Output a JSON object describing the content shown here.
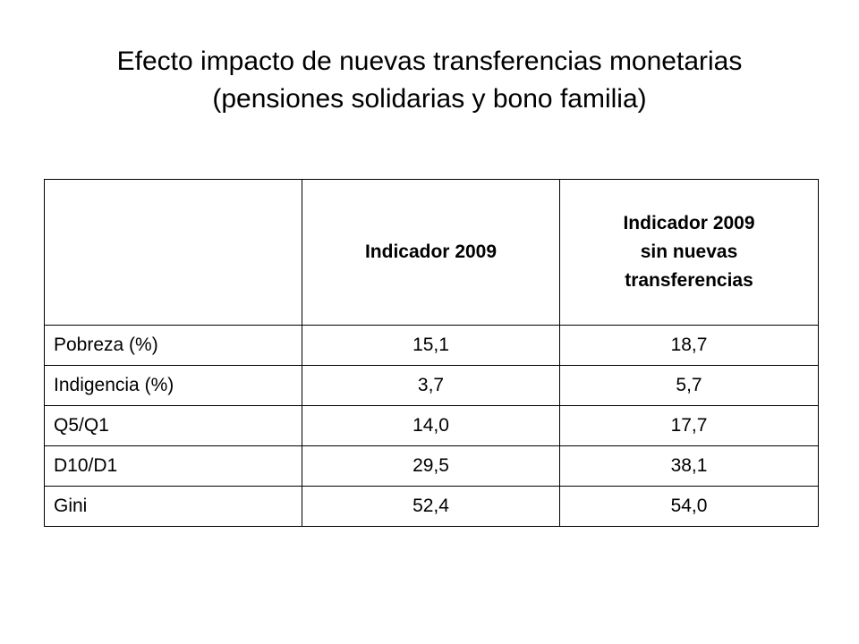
{
  "title": {
    "line1": "Efecto impacto de nuevas transferencias monetarias",
    "line2": "(pensiones solidarias y bono familia)"
  },
  "table": {
    "headers": {
      "col0": "",
      "col1": "Indicador 2009",
      "col2": [
        "Indicador 2009",
        "sin nuevas",
        "transferencias"
      ]
    },
    "rows": [
      {
        "label": "Pobreza (%)",
        "v2009": "15,1",
        "v_sin": "18,7"
      },
      {
        "label": "Indigencia (%)",
        "v2009": "3,7",
        "v_sin": "5,7"
      },
      {
        "label": "Q5/Q1",
        "v2009": "14,0",
        "v_sin": "17,7"
      },
      {
        "label": "D10/D1",
        "v2009": "29,5",
        "v_sin": "38,1"
      },
      {
        "label": "Gini",
        "v2009": "52,4",
        "v_sin": "54,0"
      }
    ]
  }
}
